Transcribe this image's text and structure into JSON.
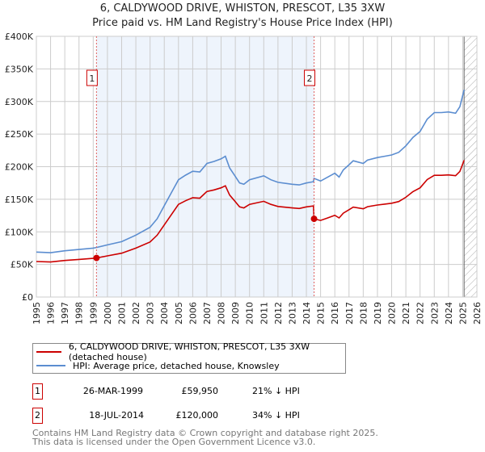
{
  "chart_data": {
    "type": "line",
    "title": "6, CALDYWOOD DRIVE, WHISTON, PRESCOT, L35 3XW",
    "subtitle": "Price paid vs. HM Land Registry's House Price Index (HPI)",
    "xlim": [
      1995,
      2026
    ],
    "ylim": [
      0,
      400000
    ],
    "grid": true,
    "y_ticks": [
      {
        "v": 0,
        "label": "£0"
      },
      {
        "v": 50000,
        "label": "£50K"
      },
      {
        "v": 100000,
        "label": "£100K"
      },
      {
        "v": 150000,
        "label": "£150K"
      },
      {
        "v": 200000,
        "label": "£200K"
      },
      {
        "v": 250000,
        "label": "£250K"
      },
      {
        "v": 300000,
        "label": "£300K"
      },
      {
        "v": 350000,
        "label": "£350K"
      },
      {
        "v": 400000,
        "label": "£400K"
      }
    ],
    "x_ticks": [
      "1995",
      "1996",
      "1997",
      "1998",
      "1999",
      "2000",
      "2001",
      "2002",
      "2003",
      "2004",
      "2005",
      "2006",
      "2007",
      "2008",
      "2009",
      "2010",
      "2011",
      "2012",
      "2013",
      "2014",
      "2015",
      "2016",
      "2017",
      "2018",
      "2019",
      "2020",
      "2021",
      "2022",
      "2023",
      "2024",
      "2025",
      "2026"
    ],
    "x": [
      1995,
      1996,
      1997,
      1998,
      1999,
      1999.23,
      2000,
      2001,
      2002,
      2003,
      2003.5,
      2004,
      2004.5,
      2005,
      2005.5,
      2006,
      2006.5,
      2007,
      2007.5,
      2008,
      2008.3,
      2008.6,
      2009,
      2009.3,
      2009.6,
      2010,
      2011,
      2011.5,
      2012,
      2013,
      2013.5,
      2014,
      2014.5,
      2014.54,
      2015,
      2015.5,
      2016,
      2016.3,
      2016.6,
      2017,
      2017.3,
      2018,
      2018.3,
      2019,
      2019.5,
      2020,
      2020.5,
      2021,
      2021.5,
      2022,
      2022.5,
      2023,
      2023.5,
      2024,
      2024.5,
      2024.8,
      2025.1
    ],
    "series": [
      {
        "name": "6, CALDYWOOD DRIVE, WHISTON, PRESCOT, L35 3XW (detached house)",
        "color": "#cc0000",
        "values": [
          54.5,
          53.7,
          56.1,
          57.7,
          59.3,
          59.95,
          63.2,
          67.2,
          75.1,
          84.5,
          94.8,
          110.6,
          126.4,
          142.2,
          147.7,
          152.5,
          151.7,
          162,
          164.3,
          167.5,
          170.6,
          156.4,
          146.2,
          138.3,
          136.7,
          142.2,
          146.9,
          142.2,
          139,
          136.7,
          135.9,
          138.3,
          139.8,
          120,
          117.5,
          121.4,
          125.4,
          121.4,
          128.7,
          134,
          137.9,
          135.3,
          138.6,
          141.2,
          142.6,
          143.9,
          146.5,
          153.1,
          161.7,
          167.6,
          180.2,
          186.8,
          186.8,
          187.4,
          186.1,
          192.7,
          209.9
        ]
      },
      {
        "name": "HPI: Average price, detached house, Knowsley",
        "color": "#5b8dd0",
        "values": [
          69,
          68,
          71,
          73,
          75,
          76,
          80,
          85,
          95,
          107,
          120,
          140,
          160,
          180,
          187,
          193,
          192,
          205,
          208,
          212,
          216,
          198,
          185,
          175,
          173,
          180,
          186,
          180,
          176,
          173,
          172,
          175,
          177,
          182,
          178,
          184,
          190,
          184,
          195,
          203,
          209,
          205,
          210,
          214,
          216,
          218,
          222,
          232,
          245,
          254,
          273,
          283,
          283,
          284,
          282,
          292,
          318
        ]
      }
    ],
    "value_unit": "thousands GBP",
    "shaded_range": [
      1999.23,
      2014.54
    ],
    "forecast_hatch_from": 2025.1,
    "sales": [
      {
        "id": "1",
        "x": 1999.23,
        "price": 59950,
        "date": "26-MAR-1999",
        "price_label": "£59,950",
        "hpi_diff": "21% ↓ HPI"
      },
      {
        "id": "2",
        "x": 2014.54,
        "price": 120000,
        "date": "18-JUL-2014",
        "price_label": "£120,000",
        "hpi_diff": "34% ↓ HPI"
      }
    ],
    "legend_position": "bottom"
  },
  "footer": {
    "line1": "Contains HM Land Registry data © Crown copyright and database right 2025.",
    "line2": "This data is licensed under the Open Government Licence v3.0."
  }
}
